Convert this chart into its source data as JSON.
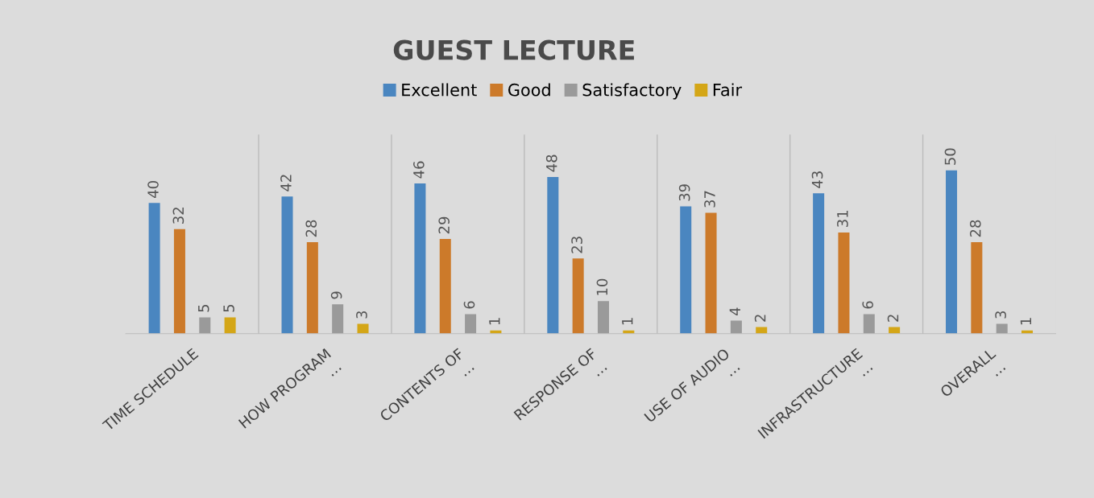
{
  "chart_data": {
    "type": "bar",
    "title": "GUEST LECTURE",
    "categories": [
      "TIME SCHEDULE",
      "HOW PROGRAM\n…",
      "CONTENTS OF\n…",
      "RESPONSE OF\n…",
      "USE OF AUDIO\n…",
      "INFRASTRUCTURE\n…",
      "OVERALL\n…"
    ],
    "series": [
      {
        "name": "Excellent",
        "color": "#4a86c0",
        "values": [
          40,
          42,
          46,
          48,
          39,
          43,
          50
        ]
      },
      {
        "name": "Good",
        "color": "#cc7a2a",
        "values": [
          32,
          28,
          29,
          23,
          37,
          31,
          28
        ]
      },
      {
        "name": "Satisfactory",
        "color": "#9a9a9a",
        "values": [
          5,
          9,
          6,
          10,
          4,
          6,
          3
        ]
      },
      {
        "name": "Fair",
        "color": "#d4a617",
        "values": [
          5,
          3,
          1,
          1,
          2,
          2,
          1
        ]
      }
    ],
    "data_labels": true,
    "grid": "x",
    "legend": "top"
  }
}
